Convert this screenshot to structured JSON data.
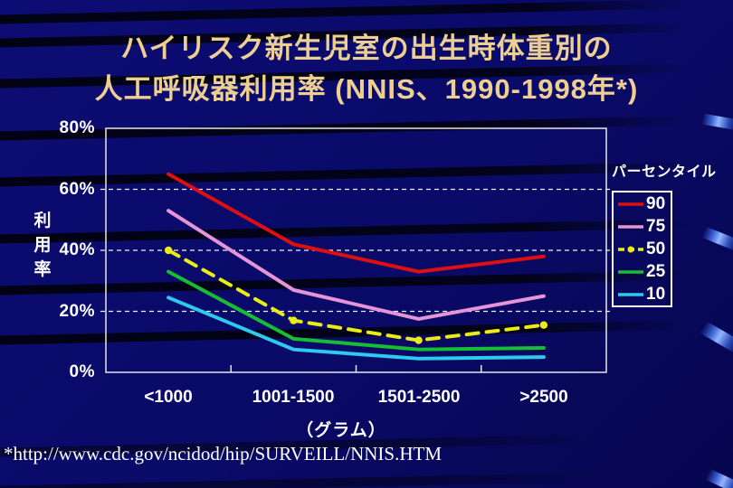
{
  "slide": {
    "title_line1": "ハイリスク新生児室の出生時体重別の",
    "title_line2": "人工呼吸器利用率 (NNIS、1990-1998年*)",
    "footnote": "*http://www.cdc.gov/ncidod/hip/SURVEILL/NNIS.HTM"
  },
  "colors": {
    "background": "#0a0a68",
    "title_text": "#eecf92",
    "axis_text": "#ffffff",
    "plot_border": "#e6e6e6",
    "gridline": "#f0f0f0",
    "ribbon_highlight": "#92b5ff"
  },
  "chart_data": {
    "type": "line",
    "categories": [
      "<1000",
      "1001-1500",
      "1501-2500",
      ">2500"
    ],
    "xlabel": "（グラム）",
    "ylabel": "利用率",
    "y_ticks": [
      "80%",
      "60%",
      "40%",
      "20%",
      "0%"
    ],
    "ylim": [
      0,
      80
    ],
    "grid_values": [
      60,
      40,
      20
    ],
    "grid_style": "dashed",
    "legend_title": "パーセンタイル",
    "legend_position": "right",
    "series": [
      {
        "name": "90",
        "color": "#dc1010",
        "dash": "solid",
        "marker": "none",
        "values": [
          65,
          42,
          33,
          38
        ]
      },
      {
        "name": "75",
        "color": "#e694d8",
        "dash": "solid",
        "marker": "none",
        "values": [
          53,
          27,
          17.5,
          25
        ]
      },
      {
        "name": "50",
        "color": "#ebeb18",
        "dash": "dashed",
        "marker": "circle",
        "values": [
          40,
          17,
          10.5,
          15.5
        ]
      },
      {
        "name": "25",
        "color": "#17bd33",
        "dash": "solid",
        "marker": "none",
        "values": [
          33,
          11,
          7.5,
          8
        ]
      },
      {
        "name": "10",
        "color": "#2ec9ef",
        "dash": "solid",
        "marker": "none",
        "values": [
          24.5,
          7.5,
          4.5,
          5
        ]
      }
    ]
  }
}
